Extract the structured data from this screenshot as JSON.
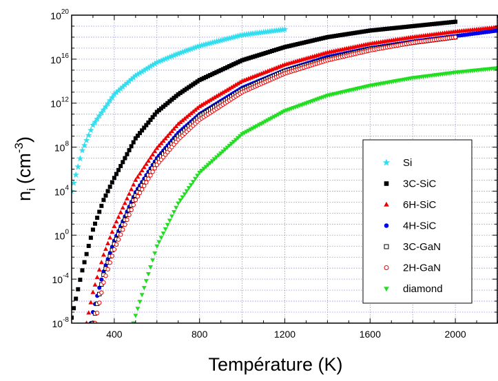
{
  "chart_data": {
    "type": "scatter",
    "xlabel": "Température (K)",
    "ylabel": {
      "base": "n",
      "sub": "i",
      "unit": "(cm",
      "sup": "-3",
      "close": ")"
    },
    "xlim": [
      200,
      2200
    ],
    "ylim_log10": [
      -8,
      20
    ],
    "y_scale": "log",
    "grid": true,
    "legend_position": "lower-right",
    "x_ticks": [
      {
        "value": 400,
        "label": "400"
      },
      {
        "value": 800,
        "label": "800"
      },
      {
        "value": 1200,
        "label": "1200"
      },
      {
        "value": 1600,
        "label": "1600"
      },
      {
        "value": 2000,
        "label": "2000"
      }
    ],
    "y_ticks": [
      {
        "exp": 20,
        "label": "10",
        "sup": "20"
      },
      {
        "exp": 16,
        "label": "10",
        "sup": "16"
      },
      {
        "exp": 12,
        "label": "10",
        "sup": "12"
      },
      {
        "exp": 8,
        "label": "10",
        "sup": "8"
      },
      {
        "exp": 4,
        "label": "10",
        "sup": "4"
      },
      {
        "exp": 0,
        "label": "10",
        "sup": "0"
      },
      {
        "exp": -4,
        "label": "10",
        "sup": "-4"
      },
      {
        "exp": -8,
        "label": "10",
        "sup": "-8"
      }
    ],
    "series": [
      {
        "name": "Si",
        "marker": "star",
        "color": "#33ddee",
        "fill": true,
        "x": [
          200,
          250,
          300,
          400,
          500,
          600,
          700,
          800,
          1000,
          1200
        ],
        "log10_y": [
          4.0,
          7.7,
          10.0,
          12.8,
          14.5,
          15.7,
          16.5,
          17.2,
          18.2,
          18.7
        ]
      },
      {
        "name": "3C-SiC",
        "marker": "square",
        "color": "#000000",
        "fill": true,
        "x": [
          200,
          250,
          300,
          350,
          400,
          500,
          600,
          700,
          800,
          1000,
          1200,
          1400,
          1600,
          1800,
          2000
        ],
        "log10_y": [
          -7.5,
          -3.2,
          0.5,
          3.2,
          5.2,
          8.8,
          11.2,
          12.8,
          14.1,
          15.9,
          17.1,
          18.0,
          18.6,
          19.0,
          19.4
        ]
      },
      {
        "name": "6H-SiC",
        "marker": "triangle-up",
        "color": "#ee0000",
        "fill": true,
        "x": [
          270,
          300,
          350,
          400,
          500,
          600,
          700,
          800,
          1000,
          1200,
          1400,
          1600,
          1800,
          2000,
          2200
        ],
        "log10_y": [
          -8.0,
          -5.2,
          -1.8,
          0.8,
          5.0,
          7.9,
          10.1,
          11.7,
          14.0,
          15.5,
          16.6,
          17.4,
          18.0,
          18.5,
          18.9
        ]
      },
      {
        "name": "4H-SiC",
        "marker": "circle",
        "color": "#0000ee",
        "fill": true,
        "x": [
          290,
          300,
          350,
          400,
          500,
          600,
          700,
          800,
          1000,
          1200,
          1400,
          1600,
          1800,
          2000,
          2200
        ],
        "log10_y": [
          -8.0,
          -7.0,
          -3.3,
          -0.5,
          3.9,
          7.0,
          9.3,
          11.0,
          13.4,
          15.0,
          16.2,
          17.0,
          17.6,
          18.1,
          18.6
        ]
      },
      {
        "name": "3C-GaN",
        "marker": "square",
        "color": "#000000",
        "fill": false,
        "x": [
          300,
          350,
          400,
          500,
          600,
          700,
          800,
          1000,
          1200,
          1400,
          1600,
          1800,
          2000
        ],
        "log10_y": [
          -8.0,
          -3.6,
          -0.8,
          3.6,
          6.7,
          9.0,
          10.8,
          13.2,
          14.9,
          16.0,
          16.9,
          17.5,
          18.0
        ]
      },
      {
        "name": "2H-GaN",
        "marker": "circle",
        "color": "#ee0000",
        "fill": false,
        "x": [
          310,
          350,
          400,
          500,
          600,
          700,
          800,
          1000,
          1200,
          1400,
          1600,
          1800,
          2000
        ],
        "log10_y": [
          -8.0,
          -4.3,
          -1.3,
          3.2,
          6.4,
          8.7,
          10.5,
          13.0,
          14.7,
          15.9,
          16.8,
          17.5,
          18.0
        ]
      },
      {
        "name": "diamond",
        "marker": "triangle-down",
        "color": "#22dd22",
        "fill": true,
        "x": [
          490,
          500,
          600,
          700,
          800,
          1000,
          1200,
          1400,
          1600,
          1800,
          2000,
          2200
        ],
        "log10_y": [
          -8.0,
          -7.3,
          -1.0,
          2.9,
          5.7,
          9.2,
          11.3,
          12.7,
          13.6,
          14.3,
          14.8,
          15.2
        ]
      }
    ]
  }
}
